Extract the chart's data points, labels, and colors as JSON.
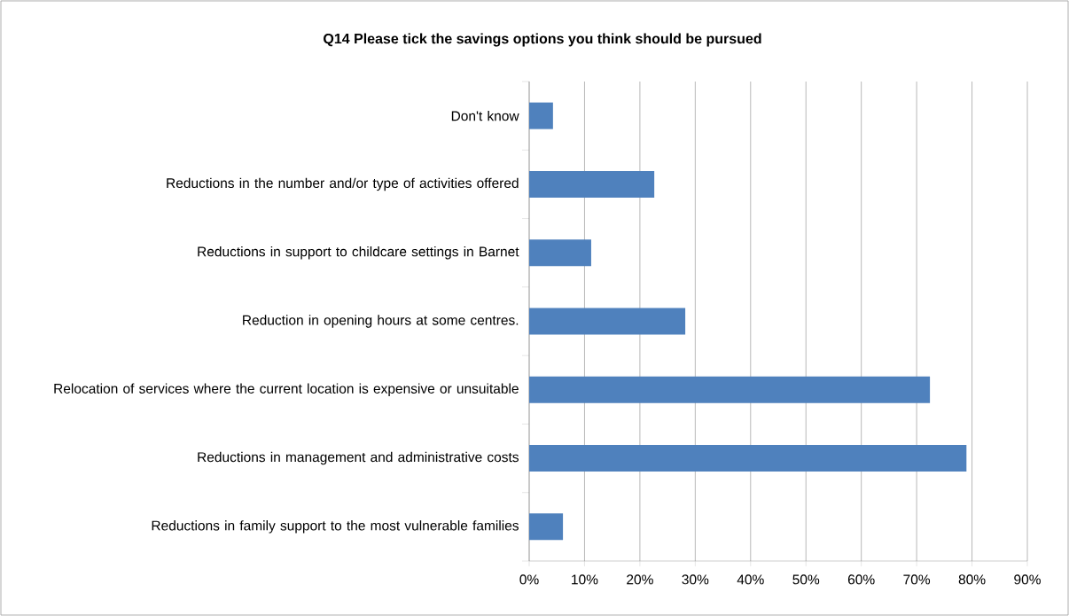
{
  "chart_data": {
    "type": "bar",
    "orientation": "horizontal",
    "title": "Q14  Please tick the savings options you think should be pursued",
    "categories": [
      "Don't know",
      "Reductions in the number and/or type of activities offered",
      "Reductions in support to childcare settings in Barnet",
      "Reduction in opening hours at some centres.",
      "Relocation of services where the current location is expensive or unsuitable",
      "Reductions in management and administrative costs",
      "Reductions in family support to the most vulnerable families"
    ],
    "values": [
      4.3,
      22.6,
      11.2,
      28.2,
      72.4,
      79.0,
      6.1
    ],
    "color": "#4f81bd",
    "xlim": [
      0,
      90
    ],
    "xticks": [
      {
        "value": 0,
        "label": "0%"
      },
      {
        "value": 10,
        "label": "10%"
      },
      {
        "value": 20,
        "label": "20%"
      },
      {
        "value": 30,
        "label": "30%"
      },
      {
        "value": 40,
        "label": "40%"
      },
      {
        "value": 50,
        "label": "50%"
      },
      {
        "value": 60,
        "label": "60%"
      },
      {
        "value": 70,
        "label": "70%"
      },
      {
        "value": 80,
        "label": "80%"
      },
      {
        "value": 90,
        "label": "90%"
      }
    ],
    "grid": "x"
  }
}
